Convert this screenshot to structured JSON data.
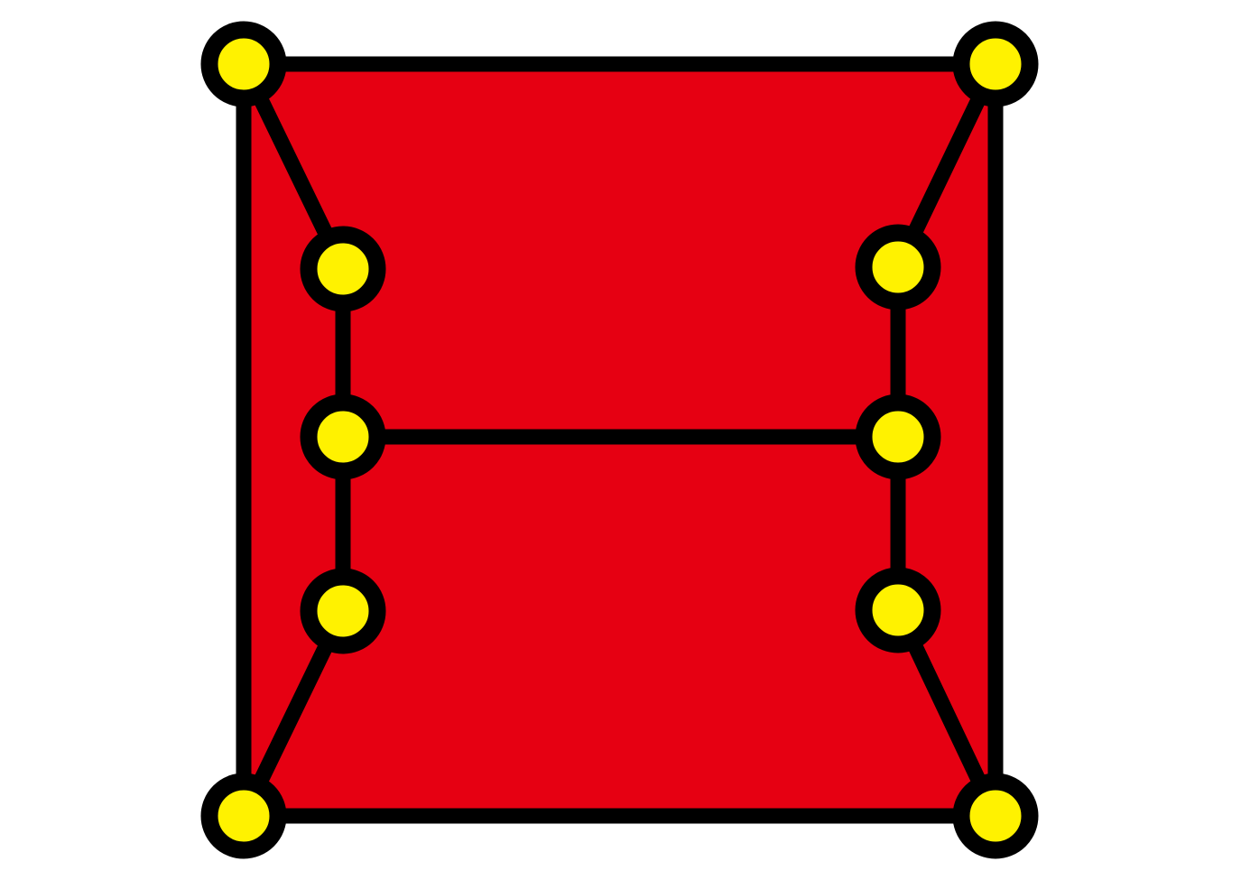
{
  "diagram": {
    "name": "planar-graph-diagram",
    "colors": {
      "background": "#ffffff",
      "face_fill": "#e60012",
      "edge_stroke": "#000000",
      "node_fill": "#fff200",
      "node_stroke": "#000000"
    },
    "nodes": [
      {
        "id": "top-left"
      },
      {
        "id": "top-right"
      },
      {
        "id": "bottom-left"
      },
      {
        "id": "bottom-right"
      },
      {
        "id": "left-upper"
      },
      {
        "id": "left-middle"
      },
      {
        "id": "left-lower"
      },
      {
        "id": "right-upper"
      },
      {
        "id": "right-middle"
      },
      {
        "id": "right-lower"
      }
    ],
    "edges": [
      {
        "from": "top-left",
        "to": "top-right"
      },
      {
        "from": "top-left",
        "to": "bottom-left"
      },
      {
        "from": "top-right",
        "to": "bottom-right"
      },
      {
        "from": "bottom-left",
        "to": "bottom-right"
      },
      {
        "from": "top-left",
        "to": "left-upper"
      },
      {
        "from": "left-upper",
        "to": "left-middle"
      },
      {
        "from": "left-middle",
        "to": "left-lower"
      },
      {
        "from": "left-lower",
        "to": "bottom-left"
      },
      {
        "from": "top-right",
        "to": "right-upper"
      },
      {
        "from": "right-upper",
        "to": "right-middle"
      },
      {
        "from": "right-middle",
        "to": "right-lower"
      },
      {
        "from": "right-lower",
        "to": "bottom-right"
      },
      {
        "from": "left-middle",
        "to": "right-middle"
      }
    ]
  }
}
